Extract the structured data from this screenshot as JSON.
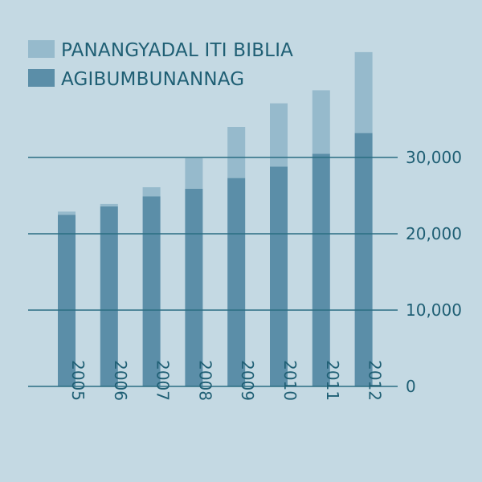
{
  "chart_data": {
    "type": "bar",
    "stacked": true,
    "categories": [
      "2005",
      "2006",
      "2007",
      "2008",
      "2009",
      "2010",
      "2011",
      "2012"
    ],
    "series": [
      {
        "name": "AGIBUMBUNANNAG",
        "color": "#5b8ea8",
        "values": [
          22500,
          23600,
          24900,
          25900,
          27300,
          28800,
          30500,
          33200
        ]
      },
      {
        "name": "PANANGYADAL ITI BIBLIA",
        "color": "#96bacc",
        "values": [
          400,
          300,
          1200,
          4000,
          6700,
          8300,
          8300,
          10600
        ]
      }
    ],
    "ylim": [
      0,
      40000
    ],
    "yticks": [
      0,
      10000,
      20000,
      30000
    ],
    "ytick_labels": [
      "0",
      "10,000",
      "20,000",
      "30,000"
    ],
    "grid": true,
    "legend_position": "top-left",
    "yaxis_side": "right"
  }
}
